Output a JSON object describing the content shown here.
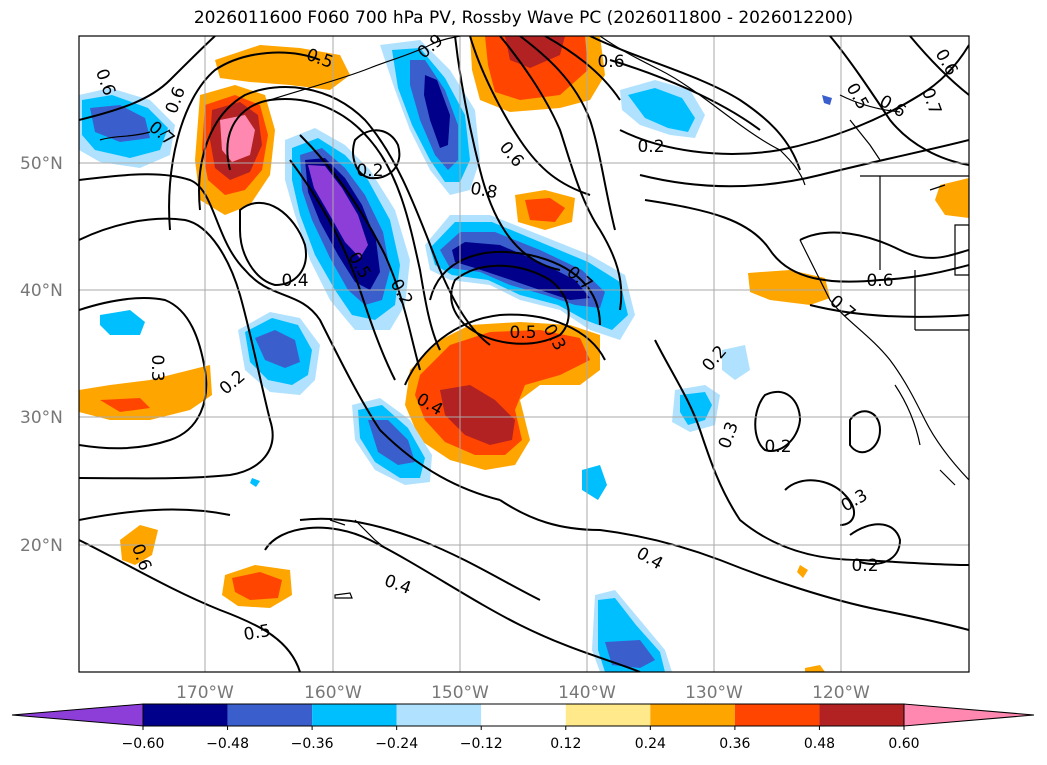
{
  "title": "2026011600 F060 700 hPa PV, Rossby Wave PC (2026011800 - 2026012200)",
  "map": {
    "lat_labels": [
      "50°N",
      "40°N",
      "30°N",
      "20°N"
    ],
    "lon_labels": [
      "170°W",
      "160°W",
      "150°W",
      "140°W",
      "130°W",
      "120°W"
    ],
    "grid": true,
    "contour_labels": [
      "0.6",
      "0.6",
      "0.5",
      "0.9",
      "0.5",
      "0.7",
      "0.6",
      "0.6",
      "0.7",
      "0.2",
      "0.4",
      "0.5",
      "0.2",
      "0.6",
      "0.8",
      "0.7",
      "0.5",
      "0.3",
      "0.2",
      "0.3",
      "0.4",
      "0.2",
      "0.3",
      "0.2",
      "0.2",
      "0.4",
      "0.3",
      "0.2",
      "0.6",
      "0.4",
      "0.5",
      "0.6",
      "0.7",
      "0.6"
    ]
  },
  "colorbar": {
    "ticks": [
      "−0.60",
      "−0.48",
      "−0.36",
      "−0.24",
      "−0.12",
      "0.12",
      "0.24",
      "0.36",
      "0.48",
      "0.60"
    ],
    "colors": [
      "#8e3ed8",
      "#00008b",
      "#3a5fcd",
      "#00bfff",
      "#b0e2ff",
      "#ffffff",
      "#ffe98a",
      "#ffa500",
      "#ff4500",
      "#b22222",
      "#ff88b0"
    ]
  }
}
